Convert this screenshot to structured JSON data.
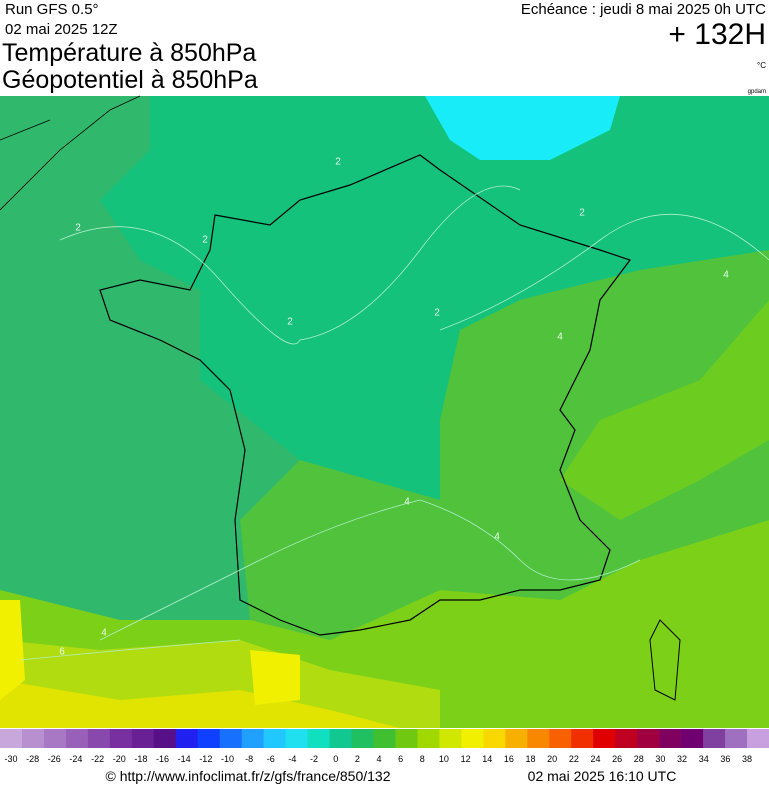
{
  "header": {
    "run": "Run GFS 0.5°",
    "run_date": "02 mai 2025 12Z",
    "title_line1": "Température à 850hPa",
    "title_line2": "Géopotentiel à 850hPa",
    "valid": "Echéance : jeudi 8 mai 2025 0h UTC",
    "lead": "+ 132H",
    "unit": "°C",
    "unit2": "gpdam"
  },
  "map": {
    "contour_labels": [
      "2",
      "2",
      "2",
      "2",
      "2",
      "2",
      "4",
      "4",
      "4",
      "4",
      "4",
      "6"
    ]
  },
  "colorbar": {
    "labels": [
      -30,
      -28,
      -26,
      -24,
      -22,
      -20,
      -18,
      -16,
      -14,
      -12,
      -10,
      -8,
      -6,
      -4,
      -2,
      0,
      2,
      4,
      6,
      8,
      10,
      12,
      14,
      16,
      18,
      20,
      22,
      24,
      26,
      28,
      30,
      32,
      34,
      36,
      38
    ],
    "colors": [
      "#c8a8dc",
      "#b890d0",
      "#a878c4",
      "#9860b8",
      "#8848ac",
      "#7830a0",
      "#682094",
      "#581088",
      "#2020f0",
      "#1040ff",
      "#1870ff",
      "#20a0ff",
      "#20c8ff",
      "#20e0f0",
      "#10e0c0",
      "#10c890",
      "#20c060",
      "#40c030",
      "#70c810",
      "#a0d800",
      "#d0e800",
      "#f0f000",
      "#f8d800",
      "#f8b000",
      "#f88800",
      "#f86000",
      "#f03000",
      "#e00000",
      "#c00020",
      "#a00040",
      "#800060",
      "#700070",
      "#8040a0",
      "#a070c0",
      "#c8a0e0"
    ]
  },
  "footer": {
    "source": "© http://www.infoclimat.fr/z/gfs/france/850/132",
    "timestamp": "02 mai 2025 16:10 UTC"
  }
}
